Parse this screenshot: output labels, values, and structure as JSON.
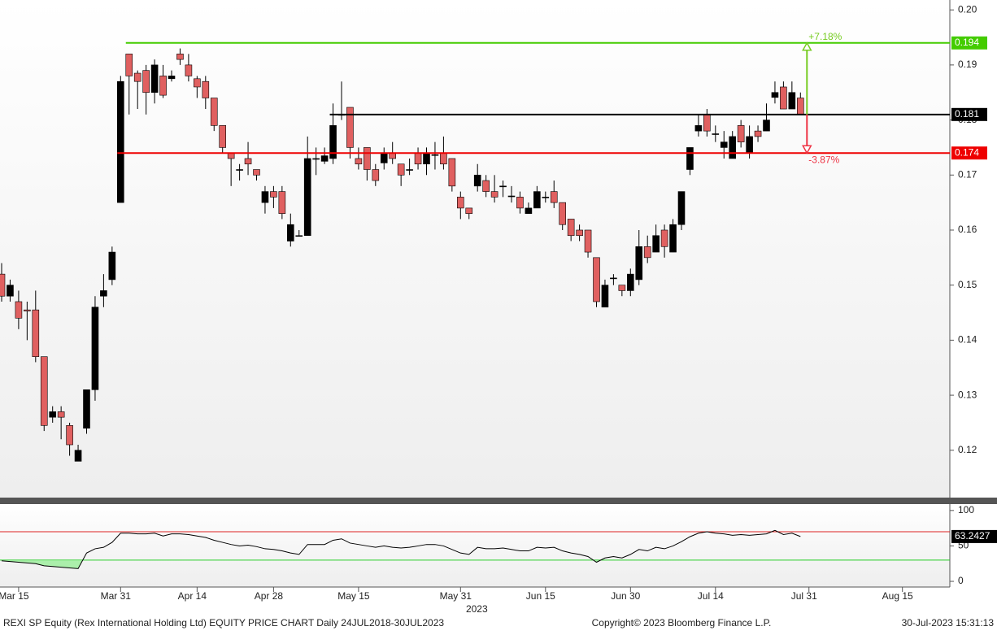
{
  "chart_data": [
    {
      "type": "candlestick",
      "x": [
        "2023-03-13",
        "2023-03-14",
        "2023-03-15",
        "2023-03-16",
        "2023-03-17",
        "2023-03-20",
        "2023-03-21",
        "2023-03-22",
        "2023-03-23",
        "2023-03-24",
        "2023-03-27",
        "2023-03-28",
        "2023-03-29",
        "2023-03-30",
        "2023-03-31",
        "2023-04-03",
        "2023-04-04",
        "2023-04-05",
        "2023-04-06",
        "2023-04-10",
        "2023-04-11",
        "2023-04-12",
        "2023-04-13",
        "2023-04-14",
        "2023-04-17",
        "2023-04-18",
        "2023-04-19",
        "2023-04-20",
        "2023-04-21",
        "2023-04-25",
        "2023-04-26",
        "2023-04-27",
        "2023-04-28",
        "2023-05-02",
        "2023-05-03",
        "2023-05-04",
        "2023-05-05",
        "2023-05-08",
        "2023-05-09",
        "2023-05-10",
        "2023-05-11",
        "2023-05-12",
        "2023-05-15",
        "2023-05-16",
        "2023-05-17",
        "2023-05-18",
        "2023-05-19",
        "2023-05-22",
        "2023-05-23",
        "2023-05-24",
        "2023-05-25",
        "2023-05-26",
        "2023-05-29",
        "2023-05-30",
        "2023-05-31",
        "2023-06-01",
        "2023-06-05",
        "2023-06-06",
        "2023-06-07",
        "2023-06-08",
        "2023-06-09",
        "2023-06-12",
        "2023-06-13",
        "2023-06-14",
        "2023-06-15",
        "2023-06-16",
        "2023-06-19",
        "2023-06-20",
        "2023-06-21",
        "2023-06-22",
        "2023-06-23",
        "2023-06-26",
        "2023-06-27",
        "2023-06-28",
        "2023-06-30",
        "2023-07-03",
        "2023-07-04",
        "2023-07-05",
        "2023-07-06",
        "2023-07-07",
        "2023-07-10",
        "2023-07-11",
        "2023-07-12",
        "2023-07-13",
        "2023-07-14",
        "2023-07-17",
        "2023-07-18",
        "2023-07-19",
        "2023-07-20",
        "2023-07-21",
        "2023-07-24",
        "2023-07-25",
        "2023-07-26",
        "2023-07-27",
        "2023-07-28"
      ],
      "open": [
        0.152,
        0.148,
        0.147,
        0.1455,
        0.1455,
        0.137,
        0.126,
        0.127,
        0.1245,
        0.118,
        0.124,
        0.131,
        0.148,
        0.151,
        0.165,
        0.192,
        0.1885,
        0.189,
        0.185,
        0.188,
        0.1875,
        0.192,
        0.19,
        0.1875,
        0.187,
        0.184,
        0.179,
        0.174,
        0.171,
        0.173,
        0.171,
        0.165,
        0.167,
        0.167,
        0.158,
        0.159,
        0.159,
        0.173,
        0.1725,
        0.173,
        0.181,
        0.1823,
        0.173,
        0.175,
        0.171,
        0.1722,
        0.174,
        0.172,
        0.171,
        0.174,
        0.172,
        0.1737,
        0.174,
        0.173,
        0.166,
        0.164,
        0.168,
        0.169,
        0.167,
        0.168,
        0.1662,
        0.166,
        0.163,
        0.164,
        0.166,
        0.167,
        0.165,
        0.162,
        0.16,
        0.16,
        0.155,
        0.146,
        0.1513,
        0.15,
        0.149,
        0.151,
        0.157,
        0.156,
        0.16,
        0.156,
        0.161,
        0.171,
        0.178,
        0.181,
        0.1775,
        0.175,
        0.173,
        0.179,
        0.174,
        0.178,
        0.178,
        0.1841,
        0.186,
        0.182,
        0.184
      ],
      "high": [
        0.154,
        0.151,
        0.149,
        0.147,
        0.149,
        0.137,
        0.128,
        0.128,
        0.125,
        0.121,
        0.131,
        0.148,
        0.152,
        0.157,
        0.188,
        0.192,
        0.189,
        0.19,
        0.191,
        0.19,
        0.189,
        0.193,
        0.192,
        0.188,
        0.188,
        0.184,
        0.179,
        0.174,
        0.172,
        0.176,
        0.171,
        0.168,
        0.168,
        0.168,
        0.163,
        0.16,
        0.177,
        0.175,
        0.175,
        0.183,
        0.187,
        0.1823,
        0.175,
        0.175,
        0.172,
        0.175,
        0.176,
        0.172,
        0.173,
        0.175,
        0.175,
        0.176,
        0.177,
        0.173,
        0.167,
        0.164,
        0.172,
        0.17,
        0.17,
        0.169,
        0.168,
        0.167,
        0.165,
        0.168,
        0.167,
        0.169,
        0.165,
        0.162,
        0.161,
        0.16,
        0.155,
        0.151,
        0.152,
        0.15,
        0.153,
        0.16,
        0.159,
        0.161,
        0.161,
        0.162,
        0.167,
        0.175,
        0.181,
        0.182,
        0.179,
        0.178,
        0.178,
        0.18,
        0.179,
        0.179,
        0.183,
        0.187,
        0.187,
        0.187,
        0.185
      ],
      "low": [
        0.147,
        0.147,
        0.142,
        0.14,
        0.136,
        0.1235,
        0.125,
        0.122,
        0.119,
        0.118,
        0.123,
        0.129,
        0.146,
        0.15,
        0.165,
        0.181,
        0.182,
        0.181,
        0.183,
        0.184,
        0.187,
        0.19,
        0.187,
        0.184,
        0.182,
        0.178,
        0.174,
        0.168,
        0.169,
        0.17,
        0.169,
        0.163,
        0.164,
        0.162,
        0.157,
        0.159,
        0.159,
        0.17,
        0.172,
        0.172,
        0.18,
        0.173,
        0.171,
        0.169,
        0.168,
        0.171,
        0.172,
        0.168,
        0.17,
        0.171,
        0.17,
        0.171,
        0.171,
        0.167,
        0.162,
        0.162,
        0.167,
        0.166,
        0.165,
        0.166,
        0.165,
        0.163,
        0.163,
        0.164,
        0.165,
        0.164,
        0.16,
        0.158,
        0.158,
        0.155,
        0.146,
        0.146,
        0.15,
        0.148,
        0.148,
        0.15,
        0.154,
        0.156,
        0.155,
        0.156,
        0.16,
        0.17,
        0.177,
        0.177,
        0.176,
        0.173,
        0.173,
        0.175,
        0.173,
        0.176,
        0.178,
        0.183,
        0.182,
        0.182,
        0.181
      ],
      "close": [
        0.148,
        0.15,
        0.144,
        0.1453,
        0.137,
        0.1245,
        0.127,
        0.126,
        0.121,
        0.12,
        0.131,
        0.146,
        0.149,
        0.156,
        0.187,
        0.188,
        0.187,
        0.185,
        0.19,
        0.1845,
        0.188,
        0.191,
        0.188,
        0.186,
        0.184,
        0.179,
        0.175,
        0.173,
        0.171,
        0.172,
        0.17,
        0.167,
        0.166,
        0.163,
        0.161,
        0.159,
        0.173,
        0.173,
        0.1735,
        0.179,
        0.181,
        0.175,
        0.172,
        0.171,
        0.169,
        0.174,
        0.173,
        0.17,
        0.171,
        0.172,
        0.174,
        0.1737,
        0.172,
        0.168,
        0.164,
        0.163,
        0.17,
        0.167,
        0.166,
        0.168,
        0.1662,
        0.164,
        0.164,
        0.167,
        0.166,
        0.165,
        0.161,
        0.159,
        0.159,
        0.156,
        0.147,
        0.15,
        0.1513,
        0.149,
        0.152,
        0.157,
        0.155,
        0.159,
        0.157,
        0.161,
        0.167,
        0.175,
        0.179,
        0.178,
        0.1775,
        0.176,
        0.177,
        0.176,
        0.177,
        0.177,
        0.18,
        0.185,
        0.182,
        0.185,
        0.181
      ],
      "up_color": "#000000",
      "down_color": "#e06060",
      "ylim": [
        0.1114,
        0.2018
      ],
      "yticks": [
        {
          "value": 0.2,
          "label": "0.20"
        },
        0.19,
        {
          "value": 0.18,
          "label": "0.18"
        },
        0.17,
        0.16,
        0.15,
        0.14,
        0.13,
        0.12
      ],
      "xticks": [
        {
          "value": "2023-03-15",
          "label": "Mar 15"
        },
        {
          "value": "2023-03-31",
          "label": "Mar 31"
        },
        {
          "value": "2023-04-14",
          "label": "Apr 14"
        },
        {
          "value": "2023-04-28",
          "label": "Apr 28"
        },
        {
          "value": "2023-05-15",
          "label": "May 15"
        },
        {
          "value": "2023-05-31",
          "label": "May 31"
        },
        {
          "value": "2023-06-15",
          "label": "Jun 15"
        },
        {
          "value": "2023-06-30",
          "label": "Jun 30"
        },
        {
          "value": "2023-07-14",
          "label": "Jul 14"
        },
        {
          "value": "2023-07-31",
          "label": "Jul 31"
        },
        {
          "value": "2023-08-15",
          "label": "Aug 15"
        }
      ],
      "year_label": "2023",
      "levels": [
        {
          "value": 0.194,
          "color": "#44cc00",
          "from": "2023-04-03"
        },
        {
          "value": 0.181,
          "color": "#000000",
          "from": "2023-05-10"
        },
        {
          "value": 0.174,
          "color": "#ee0000",
          "from": "2023-03-31"
        }
      ],
      "annotations": [
        {
          "text": "+7.18%",
          "color": "#77cc22"
        },
        {
          "text": "-3.87%",
          "color": "#ee3344"
        }
      ]
    },
    {
      "type": "line",
      "series": [
        {
          "name": "RSI",
          "color": "#000000",
          "values": [
            29,
            28,
            27,
            26,
            25,
            22,
            21,
            20,
            19,
            18,
            40,
            46,
            48,
            55,
            68,
            68,
            67,
            67,
            68,
            64,
            67,
            67,
            66,
            64,
            62,
            58,
            55,
            52,
            50,
            51,
            49,
            46,
            45,
            43,
            40,
            38,
            52,
            52,
            52,
            58,
            60,
            54,
            52,
            50,
            48,
            50,
            48,
            47,
            48,
            50,
            52,
            52,
            50,
            45,
            40,
            38,
            48,
            46,
            46,
            47,
            45,
            43,
            43,
            48,
            47,
            48,
            43,
            40,
            38,
            35,
            27,
            33,
            35,
            33,
            38,
            45,
            43,
            48,
            46,
            50,
            56,
            63,
            68,
            70,
            68,
            67,
            65,
            66,
            65,
            66,
            67,
            72,
            66,
            68,
            63.2427
          ]
        }
      ],
      "ylim": [
        -8,
        109
      ],
      "yticks": [
        0,
        50,
        100
      ],
      "levels": [
        {
          "value": 70,
          "color": "#dd2222"
        },
        {
          "value": 30,
          "color": "#22cc22"
        }
      ]
    }
  ],
  "footer": {
    "left": "REXI SP Equity (Rex International Holding Ltd) EQUITY PRICE CHART  Daily 24JUL2018-30JUL2023",
    "center": "Copyright© 2023 Bloomberg Finance L.P.",
    "right": "30-Jul-2023 15:31:13"
  }
}
